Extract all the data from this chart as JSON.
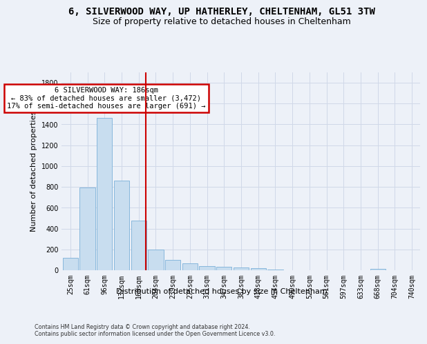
{
  "title_line1": "6, SILVERWOOD WAY, UP HATHERLEY, CHELTENHAM, GL51 3TW",
  "title_line2": "Size of property relative to detached houses in Cheltenham",
  "xlabel": "Distribution of detached houses by size in Cheltenham",
  "ylabel": "Number of detached properties",
  "footnote": "Contains HM Land Registry data © Crown copyright and database right 2024.\nContains public sector information licensed under the Open Government Licence v3.0.",
  "categories": [
    "25sqm",
    "61sqm",
    "96sqm",
    "132sqm",
    "168sqm",
    "204sqm",
    "239sqm",
    "275sqm",
    "311sqm",
    "347sqm",
    "382sqm",
    "418sqm",
    "454sqm",
    "490sqm",
    "525sqm",
    "561sqm",
    "597sqm",
    "633sqm",
    "668sqm",
    "704sqm",
    "740sqm"
  ],
  "values": [
    120,
    795,
    1460,
    860,
    475,
    200,
    100,
    65,
    40,
    35,
    30,
    22,
    8,
    2,
    1,
    1,
    1,
    1,
    15,
    1,
    1
  ],
  "bar_color": "#c8ddef",
  "bar_edge_color": "#7ab0d8",
  "vline_x_idx": 4.42,
  "vline_color": "#cc0000",
  "annotation_text": "6 SILVERWOOD WAY: 186sqm\n← 83% of detached houses are smaller (3,472)\n17% of semi-detached houses are larger (691) →",
  "annotation_box_facecolor": "#ffffff",
  "annotation_box_edgecolor": "#cc0000",
  "ylim": [
    0,
    1900
  ],
  "yticks": [
    0,
    200,
    400,
    600,
    800,
    1000,
    1200,
    1400,
    1600,
    1800
  ],
  "bg_color": "#edf1f8",
  "plot_bg_color": "#edf1f8",
  "grid_color": "#d0d8e8",
  "title_fontsize": 10,
  "subtitle_fontsize": 9,
  "tick_fontsize": 7,
  "ylabel_fontsize": 8,
  "xlabel_fontsize": 8
}
